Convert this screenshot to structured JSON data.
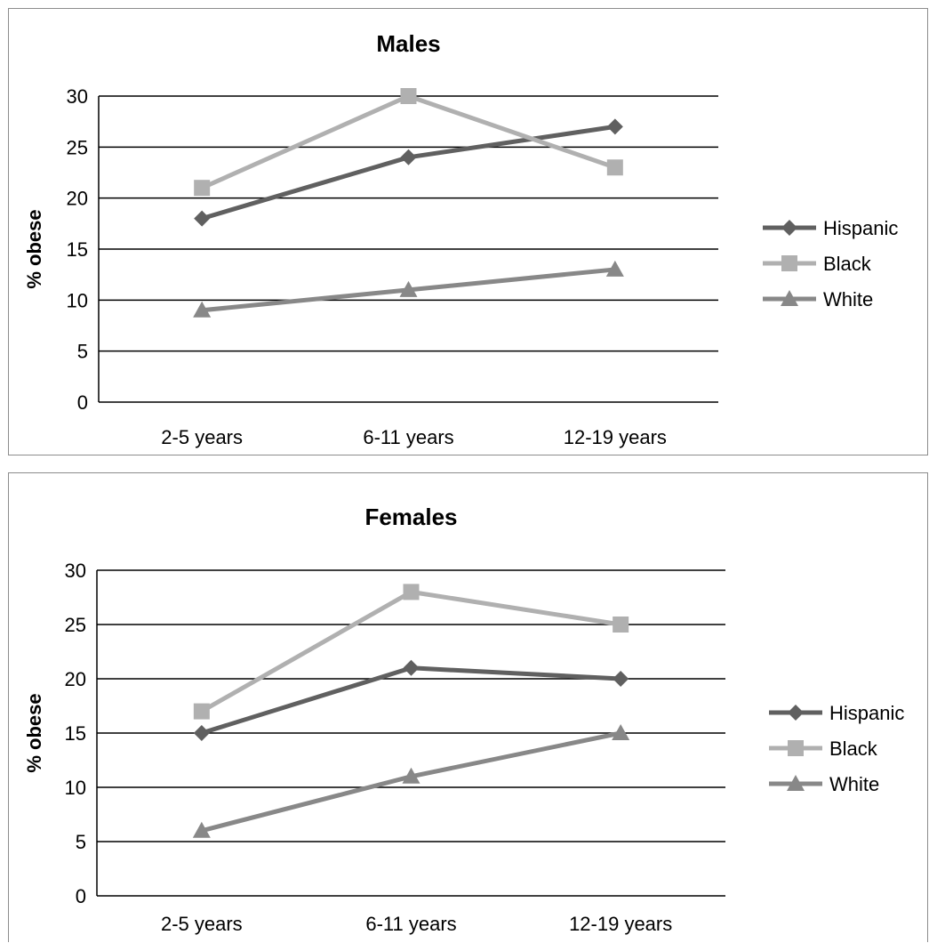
{
  "chart_data": [
    {
      "type": "line",
      "title": "Males",
      "ylabel": "% obese",
      "xlabel": "",
      "categories": [
        "2-5 years",
        "6-11 years",
        "12-19 years"
      ],
      "ylim": [
        0,
        30
      ],
      "yticks": [
        0,
        5,
        10,
        15,
        20,
        25,
        30
      ],
      "grid": true,
      "legend": "right",
      "series": [
        {
          "name": "Hispanic",
          "values": [
            18,
            24,
            27
          ],
          "color": "#606060",
          "marker": "diamond"
        },
        {
          "name": "Black",
          "values": [
            21,
            30,
            23
          ],
          "color": "#b0b0b0",
          "marker": "square"
        },
        {
          "name": "White",
          "values": [
            9,
            11,
            13
          ],
          "color": "#888888",
          "marker": "triangle"
        }
      ]
    },
    {
      "type": "line",
      "title": "Females",
      "ylabel": "% obese",
      "xlabel": "",
      "categories": [
        "2-5 years",
        "6-11 years",
        "12-19 years"
      ],
      "ylim": [
        0,
        30
      ],
      "yticks": [
        0,
        5,
        10,
        15,
        20,
        25,
        30
      ],
      "grid": true,
      "legend": "right",
      "series": [
        {
          "name": "Hispanic",
          "values": [
            15,
            21,
            20
          ],
          "color": "#606060",
          "marker": "diamond"
        },
        {
          "name": "Black",
          "values": [
            17,
            28,
            25
          ],
          "color": "#b0b0b0",
          "marker": "square"
        },
        {
          "name": "White",
          "values": [
            6,
            11,
            15
          ],
          "color": "#888888",
          "marker": "triangle"
        }
      ]
    }
  ]
}
